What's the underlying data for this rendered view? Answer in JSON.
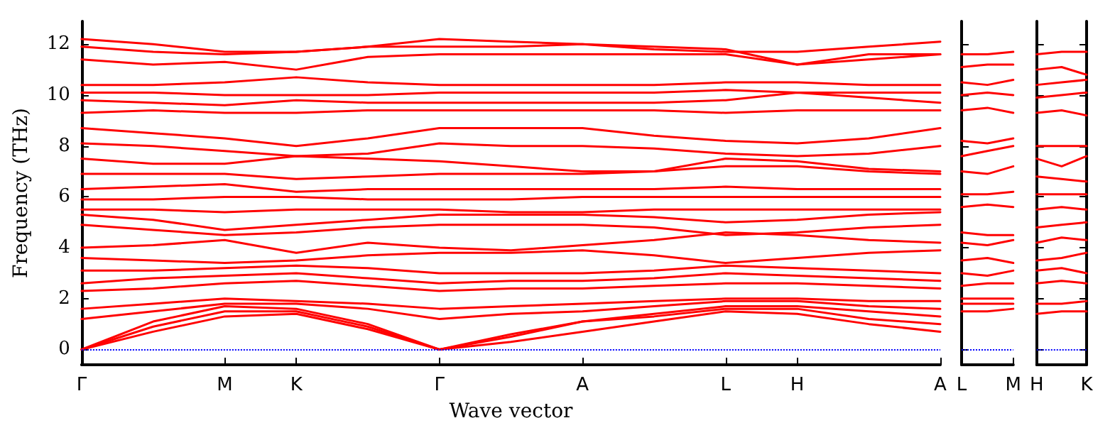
{
  "chart_data": [
    {
      "type": "line",
      "xlabel": "Wave vector",
      "ylabel": "Frequency (THz)",
      "marker": "none",
      "line_style": "solid",
      "categories": [
        "Γ",
        null,
        "M",
        "K",
        null,
        "Γ",
        null,
        "A",
        null,
        "L",
        "H",
        null,
        "A"
      ],
      "ylim": [
        -0.6,
        12.9
      ],
      "yticks": [
        0,
        2,
        4,
        6,
        8,
        10,
        12
      ],
      "ref_lines": [
        {
          "axis": "y",
          "value": 0,
          "color": "#0000ff",
          "line_style": "dotted"
        }
      ],
      "series": [
        {
          "color": "#ff0000",
          "values": [
            0,
            0.7,
            1.3,
            1.4,
            0.8,
            0,
            0.3,
            0.7,
            1.1,
            1.5,
            1.4,
            1.0,
            0.7
          ]
        },
        {
          "color": "#ff0000",
          "values": [
            0,
            0.9,
            1.5,
            1.5,
            0.9,
            0,
            0.6,
            1.1,
            1.3,
            1.6,
            1.6,
            1.2,
            1.0
          ]
        },
        {
          "color": "#ff0000",
          "values": [
            0,
            1.1,
            1.7,
            1.6,
            1.0,
            0,
            0.5,
            1.1,
            1.4,
            1.7,
            1.7,
            1.5,
            1.3
          ]
        },
        {
          "color": "#ff0000",
          "values": [
            1.2,
            1.5,
            1.8,
            1.8,
            1.6,
            1.2,
            1.4,
            1.5,
            1.7,
            1.9,
            1.9,
            1.7,
            1.6
          ]
        },
        {
          "color": "#ff0000",
          "values": [
            1.6,
            1.8,
            2.0,
            1.9,
            1.8,
            1.6,
            1.7,
            1.8,
            1.9,
            2.0,
            2.0,
            1.9,
            1.9
          ]
        },
        {
          "color": "#ff0000",
          "values": [
            2.3,
            2.4,
            2.6,
            2.7,
            2.5,
            2.3,
            2.4,
            2.4,
            2.5,
            2.6,
            2.6,
            2.5,
            2.4
          ]
        },
        {
          "color": "#ff0000",
          "values": [
            2.6,
            2.8,
            2.9,
            3.0,
            2.8,
            2.6,
            2.7,
            2.7,
            2.8,
            3.0,
            2.9,
            2.8,
            2.7
          ]
        },
        {
          "color": "#ff0000",
          "values": [
            3.1,
            3.1,
            3.2,
            3.3,
            3.2,
            3.0,
            3.0,
            3.0,
            3.1,
            3.3,
            3.2,
            3.1,
            3.0
          ]
        },
        {
          "color": "#ff0000",
          "values": [
            3.6,
            3.5,
            3.4,
            3.5,
            3.7,
            3.8,
            3.8,
            3.9,
            3.7,
            3.4,
            3.6,
            3.8,
            3.9
          ]
        },
        {
          "color": "#ff0000",
          "values": [
            4.0,
            4.1,
            4.3,
            3.8,
            4.2,
            4.0,
            3.9,
            4.1,
            4.3,
            4.6,
            4.5,
            4.3,
            4.2
          ]
        },
        {
          "color": "#ff0000",
          "values": [
            4.9,
            4.7,
            4.5,
            4.6,
            4.8,
            4.9,
            4.9,
            4.9,
            4.8,
            4.5,
            4.6,
            4.8,
            4.9
          ]
        },
        {
          "color": "#ff0000",
          "values": [
            5.3,
            5.1,
            4.7,
            4.9,
            5.1,
            5.3,
            5.3,
            5.3,
            5.2,
            5.0,
            5.1,
            5.3,
            5.4
          ]
        },
        {
          "color": "#ff0000",
          "values": [
            5.5,
            5.5,
            5.4,
            5.5,
            5.5,
            5.5,
            5.4,
            5.4,
            5.5,
            5.5,
            5.5,
            5.5,
            5.5
          ]
        },
        {
          "color": "#ff0000",
          "values": [
            5.9,
            5.9,
            6.0,
            6.0,
            5.9,
            5.9,
            5.9,
            6.0,
            6.0,
            6.0,
            6.0,
            6.0,
            6.0
          ]
        },
        {
          "color": "#ff0000",
          "values": [
            6.3,
            6.4,
            6.5,
            6.2,
            6.3,
            6.3,
            6.3,
            6.3,
            6.3,
            6.4,
            6.3,
            6.3,
            6.3
          ]
        },
        {
          "color": "#ff0000",
          "values": [
            6.9,
            6.9,
            6.9,
            6.7,
            6.8,
            6.9,
            6.9,
            6.9,
            7.0,
            7.2,
            7.2,
            7.0,
            6.9
          ]
        },
        {
          "color": "#ff0000",
          "values": [
            7.5,
            7.3,
            7.3,
            7.6,
            7.5,
            7.4,
            7.2,
            7.0,
            7.0,
            7.5,
            7.4,
            7.1,
            7.0
          ]
        },
        {
          "color": "#ff0000",
          "values": [
            8.1,
            8.0,
            7.8,
            7.6,
            7.7,
            8.1,
            8.0,
            8.0,
            7.9,
            7.7,
            7.6,
            7.7,
            8.0
          ]
        },
        {
          "color": "#ff0000",
          "values": [
            8.7,
            8.5,
            8.3,
            8.0,
            8.3,
            8.7,
            8.7,
            8.7,
            8.4,
            8.2,
            8.1,
            8.3,
            8.7
          ]
        },
        {
          "color": "#ff0000",
          "values": [
            9.3,
            9.4,
            9.3,
            9.3,
            9.4,
            9.4,
            9.4,
            9.4,
            9.4,
            9.3,
            9.4,
            9.4,
            9.4
          ]
        },
        {
          "color": "#ff0000",
          "values": [
            9.8,
            9.7,
            9.6,
            9.8,
            9.7,
            9.7,
            9.7,
            9.7,
            9.7,
            9.8,
            10.1,
            9.9,
            9.7
          ]
        },
        {
          "color": "#ff0000",
          "values": [
            10.1,
            10.1,
            10.0,
            10.0,
            10.0,
            10.1,
            10.1,
            10.1,
            10.1,
            10.2,
            10.1,
            10.1,
            10.1
          ]
        },
        {
          "color": "#ff0000",
          "values": [
            10.4,
            10.4,
            10.5,
            10.7,
            10.5,
            10.4,
            10.4,
            10.4,
            10.4,
            10.5,
            10.5,
            10.4,
            10.4
          ]
        },
        {
          "color": "#ff0000",
          "values": [
            11.4,
            11.2,
            11.3,
            11.0,
            11.5,
            11.6,
            11.6,
            11.6,
            11.6,
            11.6,
            11.2,
            11.4,
            11.6
          ]
        },
        {
          "color": "#ff0000",
          "values": [
            11.9,
            11.7,
            11.6,
            11.7,
            11.9,
            11.9,
            11.9,
            12.0,
            11.9,
            11.8,
            11.2,
            11.6,
            11.6
          ]
        },
        {
          "color": "#ff0000",
          "values": [
            12.2,
            12.0,
            11.7,
            11.7,
            11.9,
            12.2,
            12.1,
            12.0,
            11.8,
            11.7,
            11.7,
            11.9,
            12.1
          ]
        }
      ]
    },
    {
      "type": "line",
      "marker": "none",
      "line_style": "solid",
      "tick_labels": "x",
      "categories": [
        "L",
        null,
        "M"
      ],
      "ylim": [
        -0.6,
        12.9
      ],
      "yticks": [
        {
          "value": 0,
          "label": null
        },
        {
          "value": 2,
          "label": null
        },
        {
          "value": 4,
          "label": null
        },
        {
          "value": 6,
          "label": null
        },
        {
          "value": 8,
          "label": null
        },
        {
          "value": 10,
          "label": null
        },
        {
          "value": 12,
          "label": null
        }
      ],
      "ref_lines": [
        {
          "axis": "y",
          "value": 0,
          "color": "#0000ff",
          "line_style": "dotted"
        }
      ],
      "series": [
        {
          "color": "#ff0000",
          "values": [
            1.5,
            1.5,
            1.6
          ]
        },
        {
          "color": "#ff0000",
          "values": [
            1.8,
            1.8,
            1.8
          ]
        },
        {
          "color": "#ff0000",
          "values": [
            2.0,
            2.0,
            2.0
          ]
        },
        {
          "color": "#ff0000",
          "values": [
            2.5,
            2.6,
            2.6
          ]
        },
        {
          "color": "#ff0000",
          "values": [
            3.0,
            2.9,
            3.1
          ]
        },
        {
          "color": "#ff0000",
          "values": [
            3.5,
            3.6,
            3.4
          ]
        },
        {
          "color": "#ff0000",
          "values": [
            4.2,
            4.1,
            4.3
          ]
        },
        {
          "color": "#ff0000",
          "values": [
            4.6,
            4.5,
            4.5
          ]
        },
        {
          "color": "#ff0000",
          "values": [
            5.6,
            5.7,
            5.6
          ]
        },
        {
          "color": "#ff0000",
          "values": [
            6.1,
            6.1,
            6.2
          ]
        },
        {
          "color": "#ff0000",
          "values": [
            7.0,
            6.9,
            7.2
          ]
        },
        {
          "color": "#ff0000",
          "values": [
            7.6,
            7.8,
            8.0
          ]
        },
        {
          "color": "#ff0000",
          "values": [
            8.2,
            8.1,
            8.3
          ]
        },
        {
          "color": "#ff0000",
          "values": [
            9.4,
            9.5,
            9.3
          ]
        },
        {
          "color": "#ff0000",
          "values": [
            10.0,
            10.1,
            10.0
          ]
        },
        {
          "color": "#ff0000",
          "values": [
            10.5,
            10.4,
            10.6
          ]
        },
        {
          "color": "#ff0000",
          "values": [
            11.1,
            11.2,
            11.2
          ]
        },
        {
          "color": "#ff0000",
          "values": [
            11.6,
            11.6,
            11.7
          ]
        }
      ]
    },
    {
      "type": "line",
      "marker": "none",
      "line_style": "solid",
      "tick_labels": "x",
      "categories": [
        "H",
        null,
        "K"
      ],
      "ylim": [
        -0.6,
        12.9
      ],
      "yticks": [
        {
          "value": 0,
          "label": null
        },
        {
          "value": 2,
          "label": null
        },
        {
          "value": 4,
          "label": null
        },
        {
          "value": 6,
          "label": null
        },
        {
          "value": 8,
          "label": null
        },
        {
          "value": 10,
          "label": null
        },
        {
          "value": 12,
          "label": null
        }
      ],
      "ref_lines": [
        {
          "axis": "y",
          "value": 0,
          "color": "#0000ff",
          "line_style": "dotted"
        }
      ],
      "series": [
        {
          "color": "#ff0000",
          "values": [
            1.4,
            1.5,
            1.5
          ]
        },
        {
          "color": "#ff0000",
          "values": [
            1.8,
            1.8,
            1.9
          ]
        },
        {
          "color": "#ff0000",
          "values": [
            2.6,
            2.7,
            2.6
          ]
        },
        {
          "color": "#ff0000",
          "values": [
            3.1,
            3.2,
            3.0
          ]
        },
        {
          "color": "#ff0000",
          "values": [
            3.5,
            3.6,
            3.8
          ]
        },
        {
          "color": "#ff0000",
          "values": [
            4.2,
            4.4,
            4.3
          ]
        },
        {
          "color": "#ff0000",
          "values": [
            4.8,
            4.9,
            5.0
          ]
        },
        {
          "color": "#ff0000",
          "values": [
            5.5,
            5.6,
            5.5
          ]
        },
        {
          "color": "#ff0000",
          "values": [
            6.1,
            6.1,
            6.1
          ]
        },
        {
          "color": "#ff0000",
          "values": [
            6.8,
            6.7,
            6.6
          ]
        },
        {
          "color": "#ff0000",
          "values": [
            7.5,
            7.2,
            7.6
          ]
        },
        {
          "color": "#ff0000",
          "values": [
            8.0,
            8.0,
            8.0
          ]
        },
        {
          "color": "#ff0000",
          "values": [
            9.3,
            9.4,
            9.2
          ]
        },
        {
          "color": "#ff0000",
          "values": [
            9.9,
            10.0,
            10.1
          ]
        },
        {
          "color": "#ff0000",
          "values": [
            10.4,
            10.5,
            10.6
          ]
        },
        {
          "color": "#ff0000",
          "values": [
            11.0,
            11.1,
            10.8
          ]
        },
        {
          "color": "#ff0000",
          "values": [
            11.6,
            11.7,
            11.7
          ]
        }
      ]
    }
  ]
}
